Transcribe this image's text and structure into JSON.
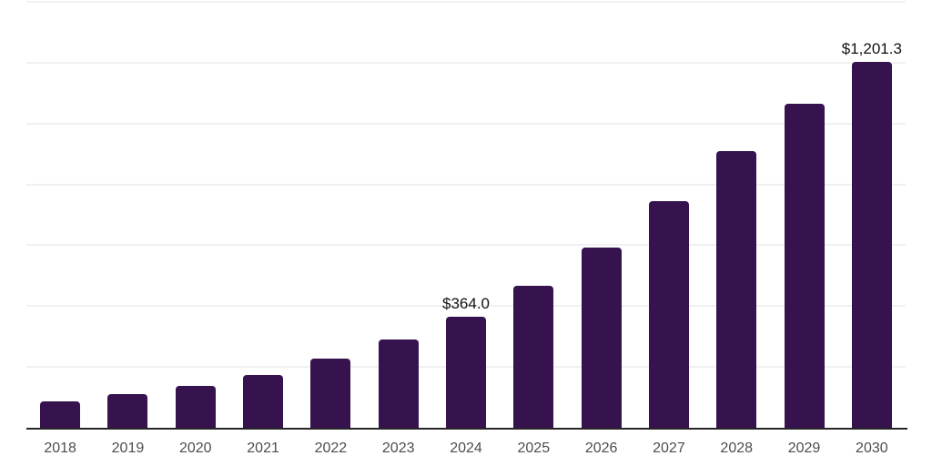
{
  "chart_data": {
    "type": "bar",
    "categories": [
      "2018",
      "2019",
      "2020",
      "2021",
      "2022",
      "2023",
      "2024",
      "2025",
      "2026",
      "2027",
      "2028",
      "2029",
      "2030"
    ],
    "values": [
      86.6,
      110.4,
      137.3,
      172.2,
      226.0,
      289.6,
      364.0,
      465.7,
      591.0,
      746.3,
      910.4,
      1065.7,
      1201.3
    ],
    "data_labels": {
      "2024": "$364.0",
      "2030": "$1,201.3"
    },
    "title": "",
    "xlabel": "",
    "ylabel": "",
    "ylim": [
      0,
      1400
    ],
    "grid_step": 200,
    "grid": true,
    "legend": false,
    "colors": {
      "bar": "#36124E",
      "gridline": "#F0F0F2",
      "axis_line": "#262626",
      "tick_label": "#4D4D4D",
      "data_label": "#111111",
      "background": "#FFFFFF"
    }
  }
}
